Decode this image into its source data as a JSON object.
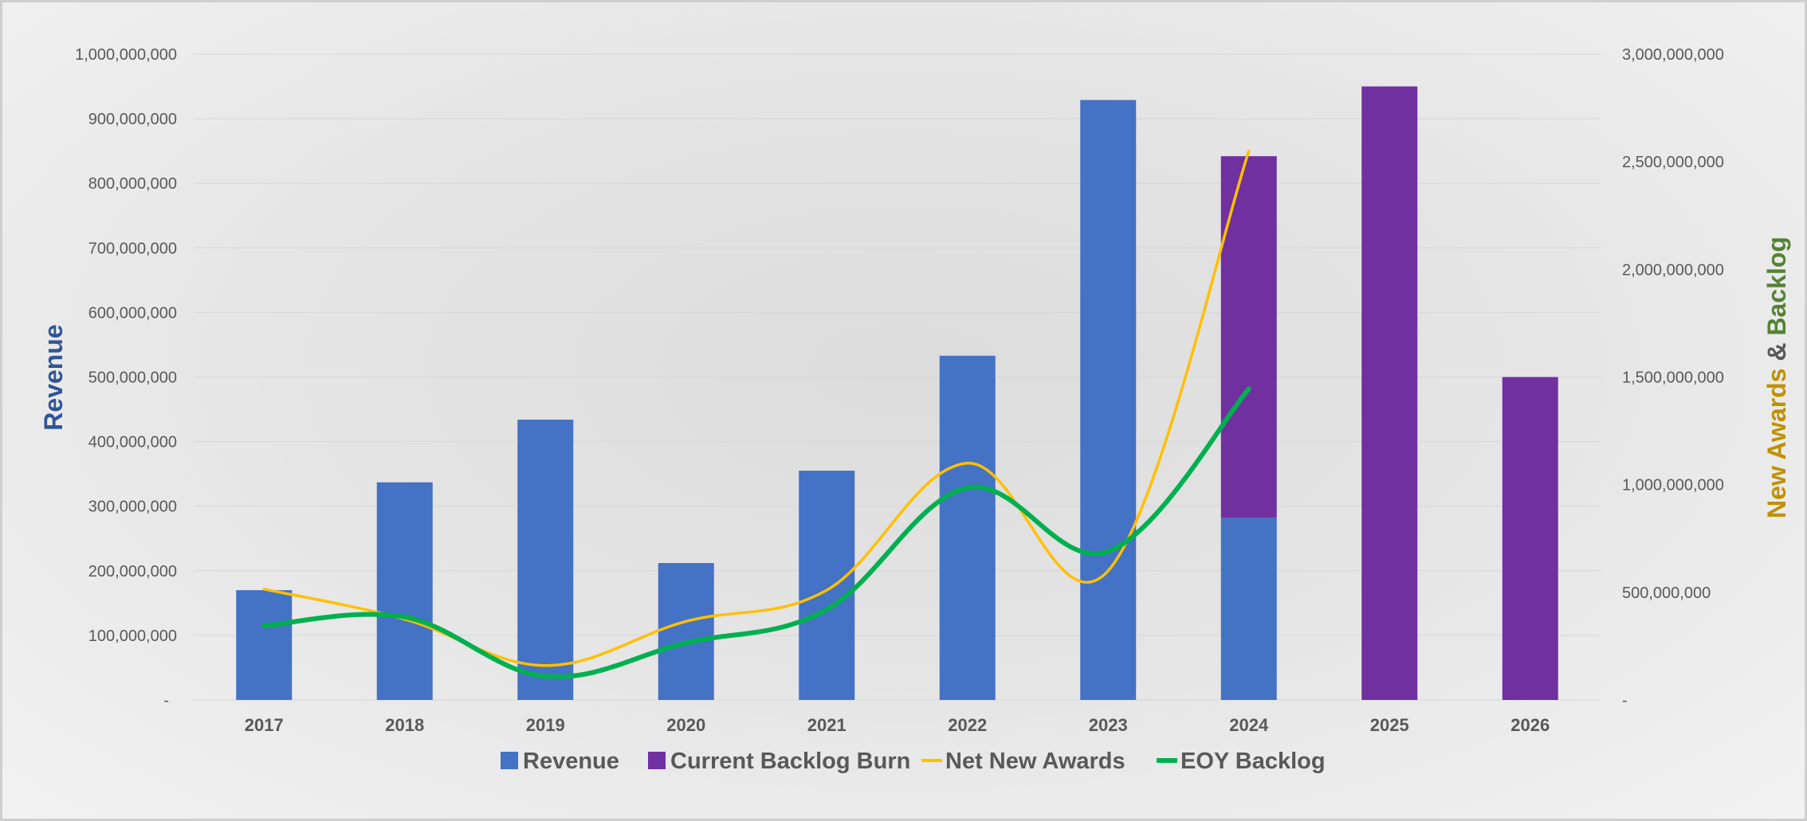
{
  "chart_data": {
    "type": "bar",
    "categories": [
      "2017",
      "2018",
      "2019",
      "2020",
      "2021",
      "2022",
      "2023",
      "2024",
      "2025",
      "2026"
    ],
    "series": [
      {
        "name": "Revenue",
        "type": "bar",
        "axis": "left",
        "stack": "main",
        "color": "#4472C4",
        "values": [
          170000000,
          337000000,
          434000000,
          212000000,
          355000000,
          533000000,
          929000000,
          282000000,
          null,
          null
        ]
      },
      {
        "name": "Current Backlog Burn",
        "type": "bar",
        "axis": "left",
        "stack": "main",
        "color": "#7030A0",
        "values": [
          null,
          null,
          null,
          null,
          null,
          null,
          null,
          560000000,
          950000000,
          500000000
        ]
      },
      {
        "name": "Net New Awards",
        "type": "line",
        "axis": "right",
        "color": "#FFC000",
        "values": [
          515000000,
          375000000,
          160000000,
          365000000,
          510000000,
          1100000000,
          600000000,
          2550000000,
          null,
          null
        ]
      },
      {
        "name": "EOY Backlog",
        "type": "line",
        "axis": "right",
        "color": "#00B050",
        "values": [
          345000000,
          385000000,
          110000000,
          265000000,
          420000000,
          985000000,
          690000000,
          1445000000,
          null,
          null
        ]
      }
    ],
    "ylabel": "Revenue",
    "ylabel_color": "#2F5597",
    "y2label_parts": [
      {
        "text": "New Awards",
        "color": "#BF9000"
      },
      {
        "text": " & ",
        "color": "#595959"
      },
      {
        "text": "Backlog",
        "color": "#548235"
      }
    ],
    "ylim": [
      0,
      1000000000
    ],
    "y2lim": [
      0,
      3000000000
    ],
    "yticks": [
      "-",
      "100,000,000",
      "200,000,000",
      "300,000,000",
      "400,000,000",
      "500,000,000",
      "600,000,000",
      "700,000,000",
      "800,000,000",
      "900,000,000",
      "1,000,000,000"
    ],
    "y2ticks": [
      "-",
      "500,000,000",
      "1,000,000,000",
      "1,500,000,000",
      "2,000,000,000",
      "2,500,000,000",
      "3,000,000,000"
    ],
    "grid": true,
    "legend_position": "bottom"
  }
}
